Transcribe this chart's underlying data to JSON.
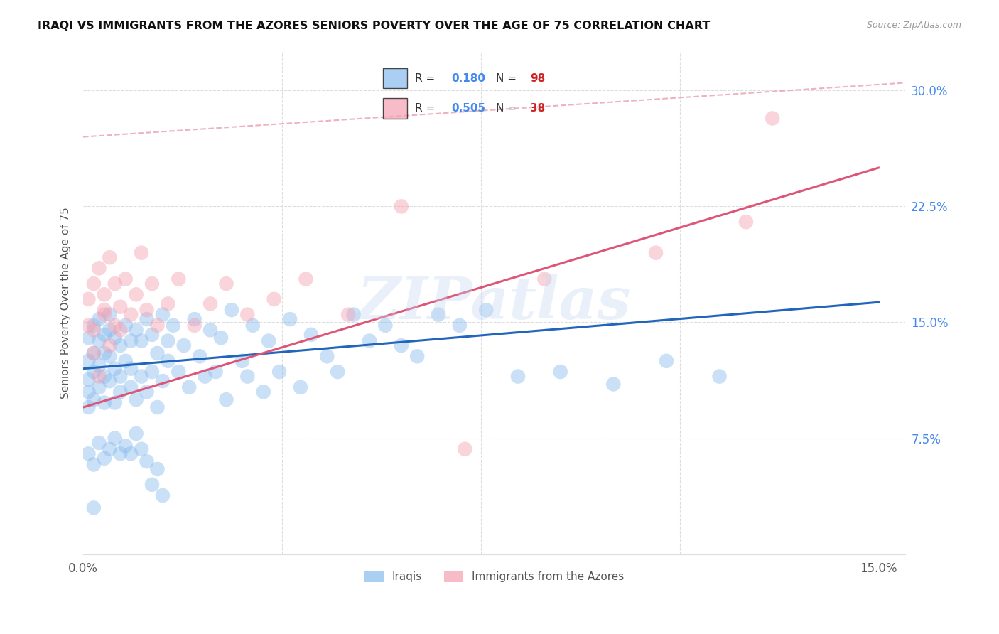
{
  "title": "IRAQI VS IMMIGRANTS FROM THE AZORES SENIORS POVERTY OVER THE AGE OF 75 CORRELATION CHART",
  "source": "Source: ZipAtlas.com",
  "ylabel": "Seniors Poverty Over the Age of 75",
  "xlim": [
    0.0,
    0.155
  ],
  "ylim": [
    0.0,
    0.325
  ],
  "ytick_vals": [
    0.075,
    0.15,
    0.225,
    0.3
  ],
  "ytick_labels": [
    "7.5%",
    "15.0%",
    "22.5%",
    "30.0%"
  ],
  "xtick_vals": [
    0.0,
    0.15
  ],
  "xtick_labels": [
    "0.0%",
    "15.0%"
  ],
  "watermark": "ZIPatlas",
  "legend_iraqis": "Iraqis",
  "legend_azores": "Immigrants from the Azores",
  "blue_color": "#88bbee",
  "pink_color": "#f4a0b0",
  "blue_line_color": "#2266bb",
  "pink_line_color": "#dd5577",
  "blue_R": 0.18,
  "blue_N": 98,
  "pink_R": 0.505,
  "pink_N": 38,
  "blue_line_x0": 0.0,
  "blue_line_y0": 0.12,
  "blue_line_x1": 0.15,
  "blue_line_y1": 0.163,
  "pink_line_x0": 0.0,
  "pink_line_y0": 0.095,
  "pink_line_x1": 0.15,
  "pink_line_y1": 0.25,
  "dash_line_x0": 0.0,
  "dash_line_y0": 0.27,
  "dash_line_x1": 0.155,
  "dash_line_y1": 0.305,
  "blue_scatter_x": [
    0.001,
    0.001,
    0.001,
    0.001,
    0.001,
    0.002,
    0.002,
    0.002,
    0.002,
    0.003,
    0.003,
    0.003,
    0.003,
    0.004,
    0.004,
    0.004,
    0.004,
    0.005,
    0.005,
    0.005,
    0.005,
    0.006,
    0.006,
    0.006,
    0.007,
    0.007,
    0.007,
    0.008,
    0.008,
    0.009,
    0.009,
    0.009,
    0.01,
    0.01,
    0.011,
    0.011,
    0.012,
    0.012,
    0.013,
    0.013,
    0.014,
    0.014,
    0.015,
    0.015,
    0.016,
    0.016,
    0.017,
    0.018,
    0.019,
    0.02,
    0.021,
    0.022,
    0.023,
    0.024,
    0.025,
    0.026,
    0.027,
    0.028,
    0.03,
    0.031,
    0.032,
    0.034,
    0.035,
    0.037,
    0.039,
    0.041,
    0.043,
    0.046,
    0.048,
    0.051,
    0.054,
    0.057,
    0.06,
    0.063,
    0.067,
    0.071,
    0.076,
    0.082,
    0.09,
    0.1,
    0.11,
    0.12,
    0.001,
    0.002,
    0.003,
    0.004,
    0.005,
    0.006,
    0.007,
    0.008,
    0.009,
    0.01,
    0.011,
    0.012,
    0.013,
    0.014,
    0.015,
    0.002
  ],
  "blue_scatter_y": [
    0.113,
    0.095,
    0.14,
    0.125,
    0.105,
    0.13,
    0.118,
    0.148,
    0.1,
    0.138,
    0.122,
    0.152,
    0.108,
    0.142,
    0.115,
    0.13,
    0.098,
    0.145,
    0.128,
    0.112,
    0.155,
    0.12,
    0.098,
    0.14,
    0.135,
    0.115,
    0.105,
    0.148,
    0.125,
    0.138,
    0.108,
    0.12,
    0.145,
    0.1,
    0.138,
    0.115,
    0.152,
    0.105,
    0.142,
    0.118,
    0.13,
    0.095,
    0.155,
    0.112,
    0.138,
    0.125,
    0.148,
    0.118,
    0.135,
    0.108,
    0.152,
    0.128,
    0.115,
    0.145,
    0.118,
    0.14,
    0.1,
    0.158,
    0.125,
    0.115,
    0.148,
    0.105,
    0.138,
    0.118,
    0.152,
    0.108,
    0.142,
    0.128,
    0.118,
    0.155,
    0.138,
    0.148,
    0.135,
    0.128,
    0.155,
    0.148,
    0.158,
    0.115,
    0.118,
    0.11,
    0.125,
    0.115,
    0.065,
    0.058,
    0.072,
    0.062,
    0.068,
    0.075,
    0.065,
    0.07,
    0.065,
    0.078,
    0.068,
    0.06,
    0.045,
    0.055,
    0.038,
    0.03
  ],
  "pink_scatter_x": [
    0.001,
    0.001,
    0.002,
    0.002,
    0.003,
    0.003,
    0.004,
    0.004,
    0.005,
    0.005,
    0.006,
    0.006,
    0.007,
    0.007,
    0.008,
    0.009,
    0.01,
    0.011,
    0.012,
    0.013,
    0.014,
    0.016,
    0.018,
    0.021,
    0.024,
    0.027,
    0.031,
    0.036,
    0.042,
    0.05,
    0.06,
    0.072,
    0.087,
    0.108,
    0.125,
    0.002,
    0.004,
    0.13
  ],
  "pink_scatter_y": [
    0.148,
    0.165,
    0.13,
    0.175,
    0.115,
    0.185,
    0.155,
    0.168,
    0.135,
    0.192,
    0.148,
    0.175,
    0.16,
    0.145,
    0.178,
    0.155,
    0.168,
    0.195,
    0.158,
    0.175,
    0.148,
    0.162,
    0.178,
    0.148,
    0.162,
    0.175,
    0.155,
    0.165,
    0.178,
    0.155,
    0.225,
    0.068,
    0.178,
    0.195,
    0.215,
    0.145,
    0.158,
    0.282
  ]
}
